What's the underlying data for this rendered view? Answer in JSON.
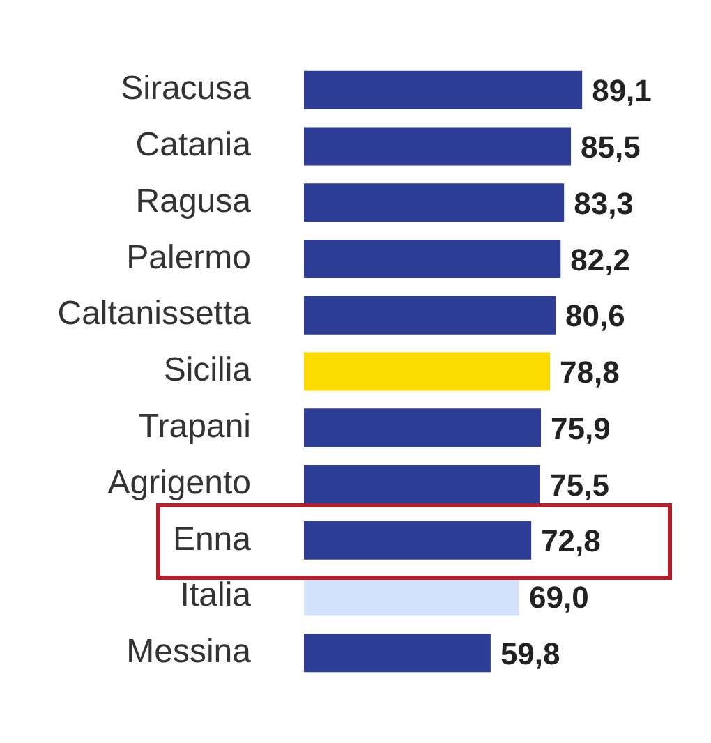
{
  "chart_data": {
    "type": "bar",
    "orientation": "horizontal",
    "categories": [
      "Siracusa",
      "Catania",
      "Ragusa",
      "Palermo",
      "Caltanissetta",
      "Sicilia",
      "Trapani",
      "Agrigento",
      "Enna",
      "Italia",
      "Messina"
    ],
    "values": [
      89.1,
      85.5,
      83.3,
      82.2,
      80.6,
      78.8,
      75.9,
      75.5,
      72.8,
      69.0,
      59.8
    ],
    "colors": [
      "#2e3d96",
      "#2e3d96",
      "#2e3d96",
      "#2e3d96",
      "#2e3d96",
      "#fcdc00",
      "#2e3d96",
      "#2e3d96",
      "#2e3d96",
      "#d3e2fb",
      "#2e3d96"
    ],
    "value_labels": [
      "89,1",
      "85,5",
      "83,3",
      "82,2",
      "80,6",
      "78,8",
      "75,9",
      "75,5",
      "72,8",
      "69,0",
      "59,8"
    ],
    "legend": false
  }
}
